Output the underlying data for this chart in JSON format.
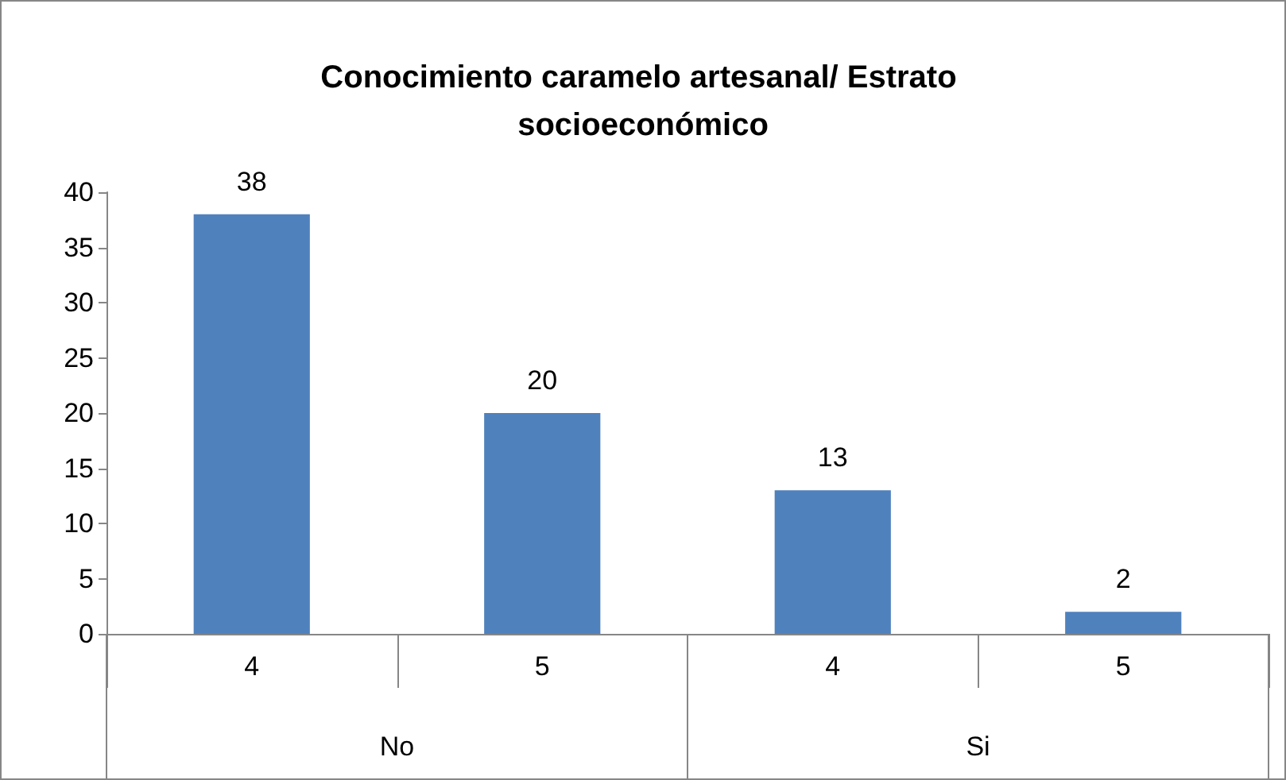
{
  "chart_data": {
    "type": "bar",
    "title": "Conocimiento caramelo artesanal/ Estrato socioeconómico",
    "categories": [
      "4",
      "5",
      "4",
      "5"
    ],
    "values": [
      38,
      20,
      13,
      2
    ],
    "color": "#4f81bd",
    "annotations": [
      "No",
      "Si"
    ],
    "ylim": [
      0,
      40
    ],
    "yticks": [
      0,
      5,
      10,
      15,
      20,
      25,
      30,
      35,
      40
    ],
    "grid": false,
    "data_labels": true
  }
}
